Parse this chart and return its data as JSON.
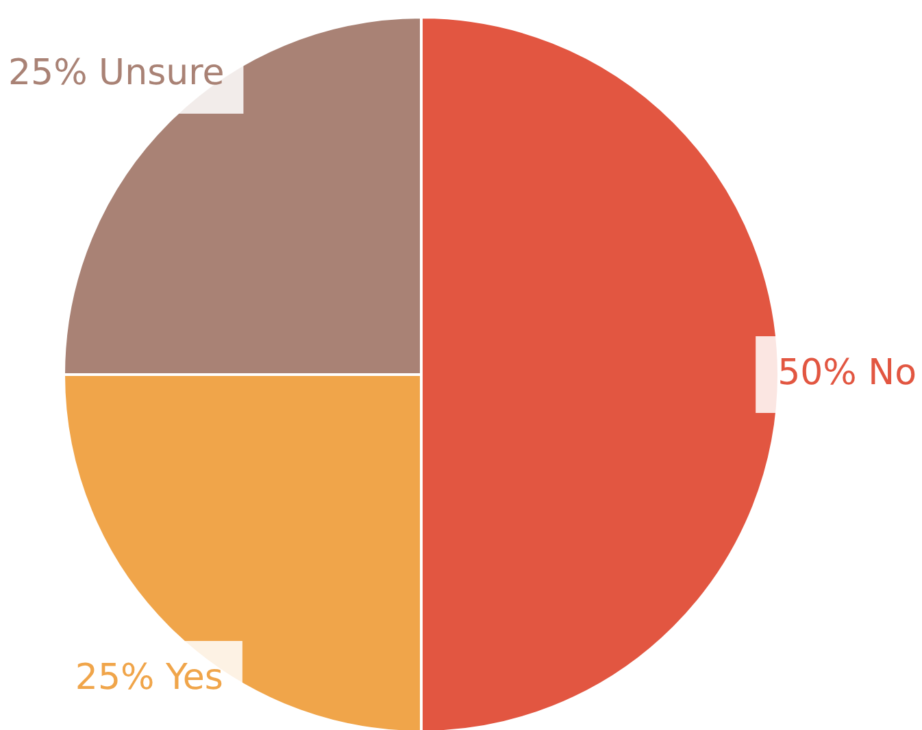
{
  "chart_data": {
    "type": "pie",
    "categories": [
      "No",
      "Yes",
      "Unsure"
    ],
    "values": [
      50,
      25,
      25
    ],
    "colors": [
      "#e25641",
      "#f0a54a",
      "#a98275"
    ],
    "value_labels": [
      "50%",
      "25%",
      "25%"
    ],
    "legend": false
  }
}
